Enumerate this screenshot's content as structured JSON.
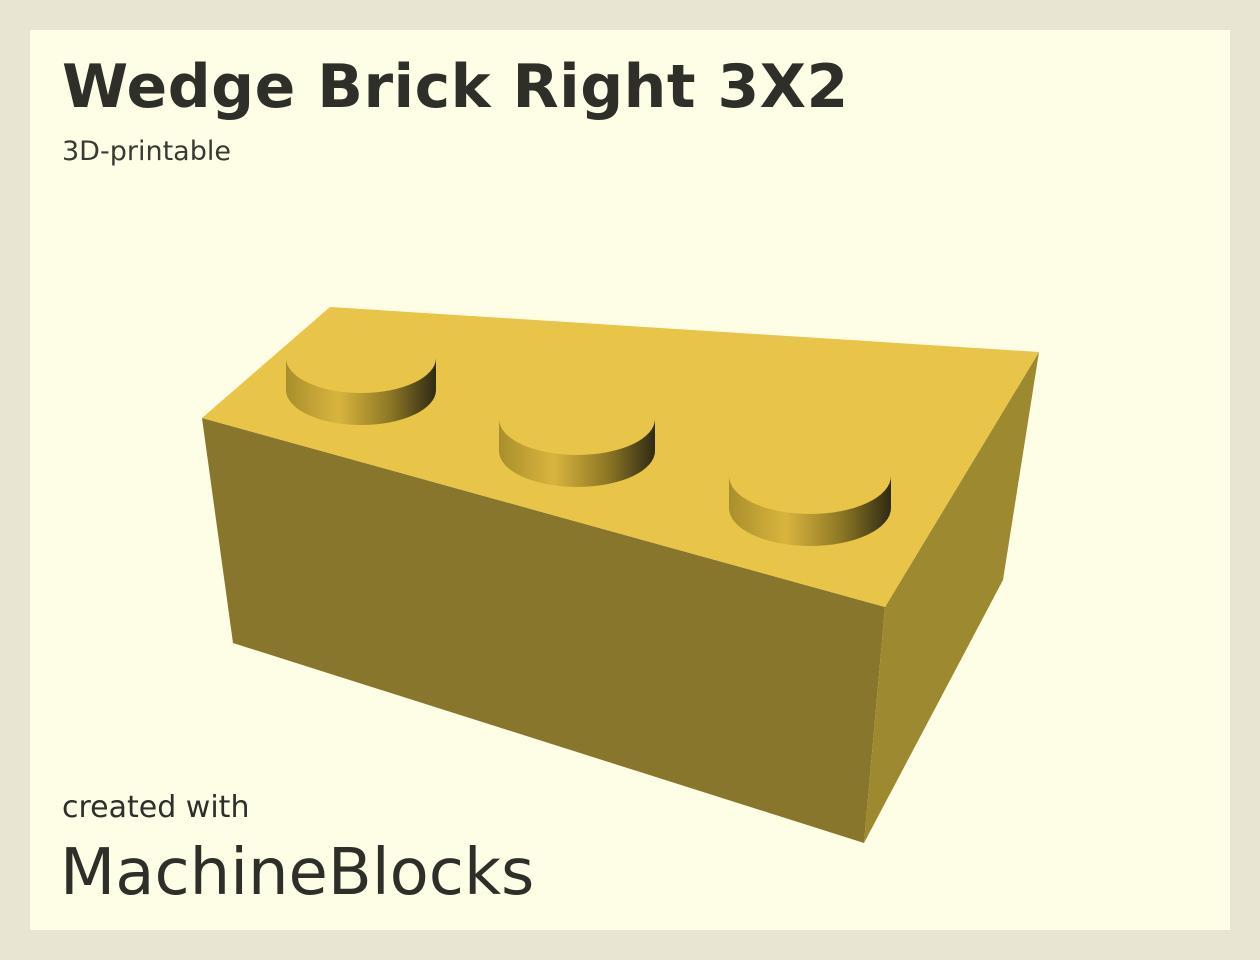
{
  "title": "Wedge Brick Right 3X2",
  "subtitle": "3D-printable",
  "footer": {
    "created_label": "created with",
    "brand": "MachineBlocks"
  },
  "colors": {
    "page_border": "#e8e5d3",
    "card_background": "#fefee7",
    "brick_top": "#e8c548",
    "brick_front": "#88762c",
    "brick_side": "#9d8a30",
    "text": "#2f2f2a"
  },
  "icons": {
    "model": "wedge-brick-3d-render"
  }
}
